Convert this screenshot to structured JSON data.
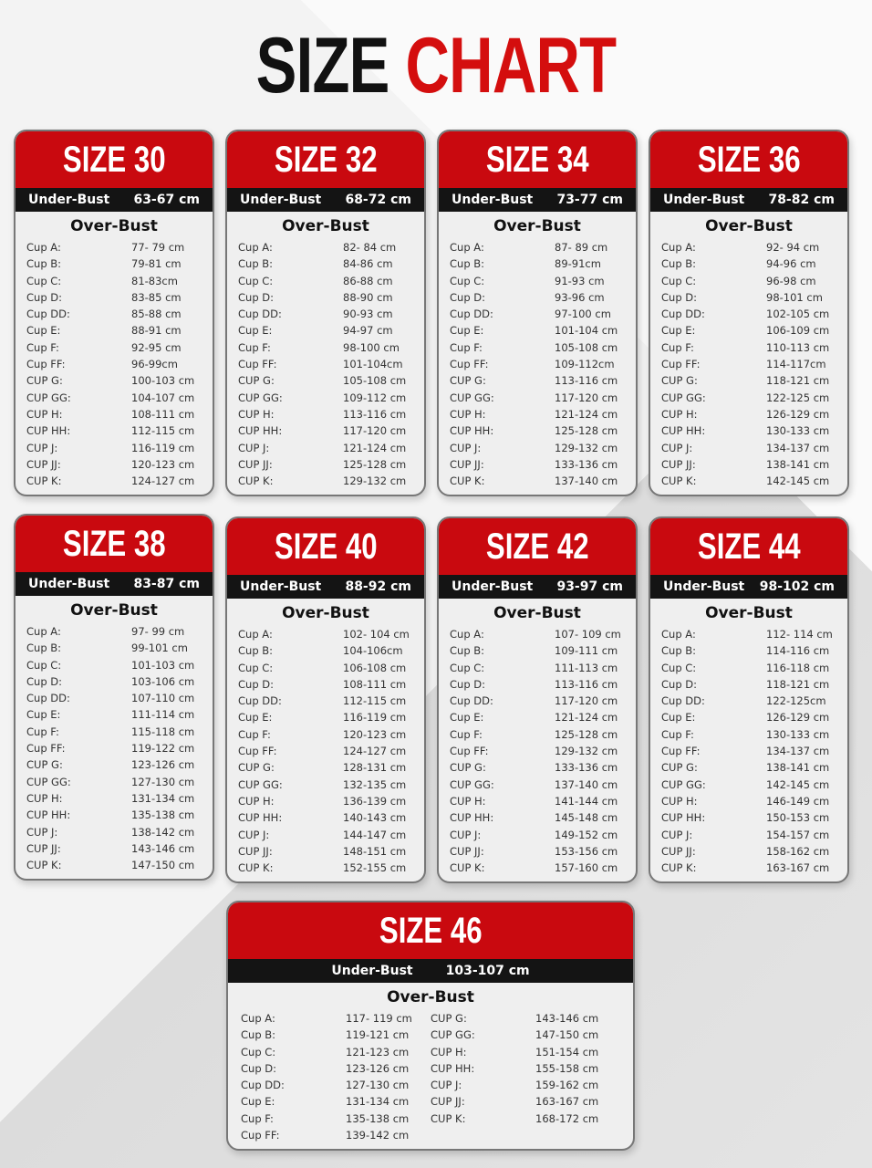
{
  "title": {
    "part1": "SIZE",
    "part2": "CHART"
  },
  "colors": {
    "accent": "#c9090f",
    "band": "#141414",
    "card": "#efefef"
  },
  "labels": {
    "under_bust": "Under-Bust",
    "over_bust": "Over-Bust"
  },
  "cards": [
    {
      "size": "SIZE 30",
      "under_bust": "63-67 cm",
      "cups": [
        [
          "Cup A:",
          "77- 79 cm"
        ],
        [
          "Cup B:",
          "79-81 cm"
        ],
        [
          "Cup C:",
          "81-83cm"
        ],
        [
          "Cup D:",
          "83-85 cm"
        ],
        [
          "Cup DD:",
          "85-88 cm"
        ],
        [
          "Cup E:",
          "88-91 cm"
        ],
        [
          "Cup F:",
          "92-95 cm"
        ],
        [
          "Cup FF:",
          "96-99cm"
        ],
        [
          "CUP G:",
          "100-103 cm"
        ],
        [
          "CUP GG:",
          "104-107 cm"
        ],
        [
          "CUP H:",
          "108-111 cm"
        ],
        [
          "CUP HH:",
          "112-115 cm"
        ],
        [
          "CUP J:",
          "116-119 cm"
        ],
        [
          "CUP JJ:",
          "120-123 cm"
        ],
        [
          "CUP K:",
          "124-127 cm"
        ]
      ]
    },
    {
      "size": "SIZE 32",
      "under_bust": "68-72 cm",
      "cups": [
        [
          "Cup A:",
          "82- 84 cm"
        ],
        [
          "Cup B:",
          "84-86 cm"
        ],
        [
          "Cup C:",
          "86-88 cm"
        ],
        [
          "Cup D:",
          "88-90 cm"
        ],
        [
          "Cup DD:",
          "90-93 cm"
        ],
        [
          "Cup E:",
          "94-97 cm"
        ],
        [
          "Cup F:",
          "98-100 cm"
        ],
        [
          "Cup FF:",
          "101-104cm"
        ],
        [
          "CUP G:",
          "105-108 cm"
        ],
        [
          "CUP GG:",
          "109-112 cm"
        ],
        [
          "CUP H:",
          "113-116 cm"
        ],
        [
          "CUP HH:",
          "117-120 cm"
        ],
        [
          "CUP J:",
          "121-124 cm"
        ],
        [
          "CUP JJ:",
          "125-128 cm"
        ],
        [
          "CUP K:",
          "129-132 cm"
        ]
      ]
    },
    {
      "size": "SIZE 34",
      "under_bust": "73-77 cm",
      "cups": [
        [
          "Cup A:",
          "87- 89 cm"
        ],
        [
          "Cup B:",
          "89-91cm"
        ],
        [
          "Cup C:",
          "91-93 cm"
        ],
        [
          "Cup D:",
          "93-96 cm"
        ],
        [
          "Cup DD:",
          "97-100 cm"
        ],
        [
          "Cup E:",
          "101-104 cm"
        ],
        [
          "Cup F:",
          "105-108 cm"
        ],
        [
          "Cup FF:",
          "109-112cm"
        ],
        [
          "CUP G:",
          "113-116 cm"
        ],
        [
          "CUP GG:",
          "117-120 cm"
        ],
        [
          "CUP H:",
          "121-124 cm"
        ],
        [
          "CUP HH:",
          "125-128 cm"
        ],
        [
          "CUP J:",
          "129-132 cm"
        ],
        [
          "CUP JJ:",
          "133-136 cm"
        ],
        [
          "CUP K:",
          "137-140 cm"
        ]
      ]
    },
    {
      "size": "SIZE 36",
      "under_bust": "78-82 cm",
      "cups": [
        [
          "Cup A:",
          "92- 94 cm"
        ],
        [
          "Cup B:",
          "94-96 cm"
        ],
        [
          "Cup C:",
          "96-98 cm"
        ],
        [
          "Cup D:",
          "98-101 cm"
        ],
        [
          "Cup DD:",
          "102-105 cm"
        ],
        [
          "Cup E:",
          "106-109 cm"
        ],
        [
          "Cup F:",
          "110-113 cm"
        ],
        [
          "Cup FF:",
          "114-117cm"
        ],
        [
          "CUP G:",
          "118-121 cm"
        ],
        [
          "CUP GG:",
          "122-125 cm"
        ],
        [
          "CUP H:",
          "126-129 cm"
        ],
        [
          "CUP HH:",
          "130-133 cm"
        ],
        [
          "CUP J:",
          "134-137 cm"
        ],
        [
          "CUP JJ:",
          "138-141 cm"
        ],
        [
          "CUP K:",
          "142-145 cm"
        ]
      ]
    },
    {
      "size": "SIZE 38",
      "under_bust": "83-87 cm",
      "cups": [
        [
          "Cup A:",
          "97- 99 cm"
        ],
        [
          "Cup B:",
          "99-101 cm"
        ],
        [
          "Cup C:",
          "101-103 cm"
        ],
        [
          "Cup D:",
          "103-106 cm"
        ],
        [
          "Cup DD:",
          "107-110 cm"
        ],
        [
          "Cup E:",
          "111-114 cm"
        ],
        [
          "Cup F:",
          "115-118 cm"
        ],
        [
          "Cup FF:",
          "119-122 cm"
        ],
        [
          "CUP G:",
          "123-126 cm"
        ],
        [
          "CUP GG:",
          "127-130 cm"
        ],
        [
          "CUP H:",
          "131-134 cm"
        ],
        [
          "CUP HH:",
          "135-138 cm"
        ],
        [
          "CUP J:",
          "138-142 cm"
        ],
        [
          "CUP JJ:",
          "143-146 cm"
        ],
        [
          "CUP K:",
          "147-150 cm"
        ]
      ]
    },
    {
      "size": "SIZE 40",
      "under_bust": "88-92 cm",
      "cups": [
        [
          "Cup A:",
          "102- 104 cm"
        ],
        [
          "Cup B:",
          "104-106cm"
        ],
        [
          "Cup C:",
          "106-108 cm"
        ],
        [
          "Cup D:",
          "108-111 cm"
        ],
        [
          "Cup DD:",
          "112-115 cm"
        ],
        [
          "Cup E:",
          "116-119 cm"
        ],
        [
          "Cup F:",
          "120-123 cm"
        ],
        [
          "Cup FF:",
          "124-127 cm"
        ],
        [
          "CUP G:",
          "128-131 cm"
        ],
        [
          "CUP GG:",
          "132-135 cm"
        ],
        [
          "CUP H:",
          "136-139 cm"
        ],
        [
          "CUP HH:",
          "140-143 cm"
        ],
        [
          "CUP J:",
          "144-147 cm"
        ],
        [
          "CUP JJ:",
          "148-151 cm"
        ],
        [
          "CUP K:",
          "152-155 cm"
        ]
      ]
    },
    {
      "size": "SIZE 42",
      "under_bust": "93-97 cm",
      "cups": [
        [
          "Cup A:",
          "107- 109 cm"
        ],
        [
          "Cup B:",
          "109-111 cm"
        ],
        [
          "Cup C:",
          "111-113 cm"
        ],
        [
          "Cup D:",
          "113-116 cm"
        ],
        [
          "Cup DD:",
          "117-120 cm"
        ],
        [
          "Cup E:",
          "121-124 cm"
        ],
        [
          "Cup F:",
          "125-128 cm"
        ],
        [
          "Cup FF:",
          "129-132 cm"
        ],
        [
          "CUP G:",
          "133-136 cm"
        ],
        [
          "CUP GG:",
          "137-140 cm"
        ],
        [
          "CUP H:",
          "141-144 cm"
        ],
        [
          "CUP HH:",
          "145-148 cm"
        ],
        [
          "CUP J:",
          "149-152 cm"
        ],
        [
          "CUP JJ:",
          "153-156 cm"
        ],
        [
          "CUP K:",
          "157-160 cm"
        ]
      ]
    },
    {
      "size": "SIZE 44",
      "under_bust": "98-102 cm",
      "cups": [
        [
          "Cup A:",
          "112- 114 cm"
        ],
        [
          "Cup B:",
          "114-116 cm"
        ],
        [
          "Cup C:",
          "116-118 cm"
        ],
        [
          "Cup D:",
          "118-121 cm"
        ],
        [
          "Cup DD:",
          "122-125cm"
        ],
        [
          "Cup E:",
          "126-129 cm"
        ],
        [
          "Cup F:",
          "130-133 cm"
        ],
        [
          "Cup FF:",
          "134-137 cm"
        ],
        [
          "CUP G:",
          "138-141 cm"
        ],
        [
          "CUP GG:",
          "142-145 cm"
        ],
        [
          "CUP H:",
          "146-149 cm"
        ],
        [
          "CUP HH:",
          "150-153 cm"
        ],
        [
          "CUP J:",
          "154-157 cm"
        ],
        [
          "CUP JJ:",
          "158-162 cm"
        ],
        [
          "CUP K:",
          "163-167 cm"
        ]
      ]
    },
    {
      "size": "SIZE 46",
      "under_bust": "103-107 cm",
      "cups": [
        [
          "Cup A:",
          "117- 119 cm"
        ],
        [
          "Cup B:",
          "119-121 cm"
        ],
        [
          "Cup C:",
          "121-123 cm"
        ],
        [
          "Cup D:",
          "123-126 cm"
        ],
        [
          "Cup DD:",
          "127-130 cm"
        ],
        [
          "Cup E:",
          "131-134 cm"
        ],
        [
          "Cup F:",
          "135-138 cm"
        ],
        [
          "Cup FF:",
          "139-142 cm"
        ],
        [
          "CUP G:",
          "143-146 cm"
        ],
        [
          "CUP GG:",
          "147-150 cm"
        ],
        [
          "CUP H:",
          "151-154 cm"
        ],
        [
          "CUP HH:",
          "155-158 cm"
        ],
        [
          "CUP J:",
          "159-162 cm"
        ],
        [
          "CUP JJ:",
          "163-167 cm"
        ],
        [
          "CUP K:",
          "168-172 cm"
        ]
      ]
    }
  ]
}
